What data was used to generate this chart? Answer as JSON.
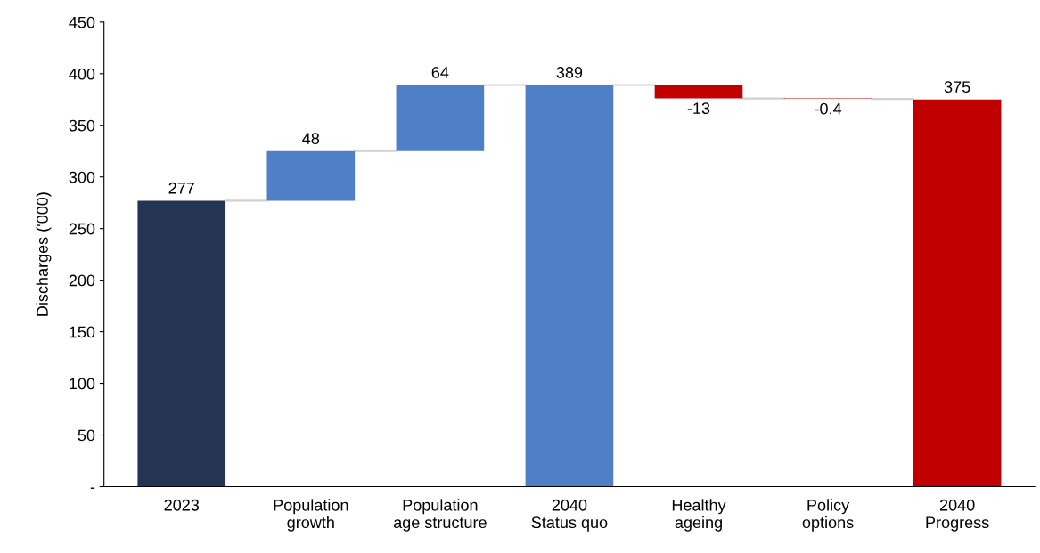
{
  "chart_data": {
    "type": "bar",
    "ylabel": "Discharges ('000)",
    "categories": [
      "2023",
      "Population\ngrowth",
      "Population\nage structure",
      "2040\nStatus quo",
      "Healthy\nageing",
      "Policy\noptions",
      "2040\nProgress"
    ],
    "values": [
      277,
      48,
      64,
      389,
      -13,
      -0.4,
      375
    ],
    "base": [
      0,
      277,
      325,
      0,
      389,
      376,
      0
    ],
    "colors": [
      "#243452",
      "#4f7fc6",
      "#4f7fc6",
      "#4f7fc6",
      "#c00000",
      "#c00000",
      "#c00000"
    ],
    "ylim": [
      0,
      450
    ],
    "yticks": [
      {
        "value": 0,
        "label": "-"
      },
      50,
      100,
      150,
      200,
      250,
      300,
      350,
      400,
      450
    ],
    "data_labels": true,
    "grid": false
  }
}
